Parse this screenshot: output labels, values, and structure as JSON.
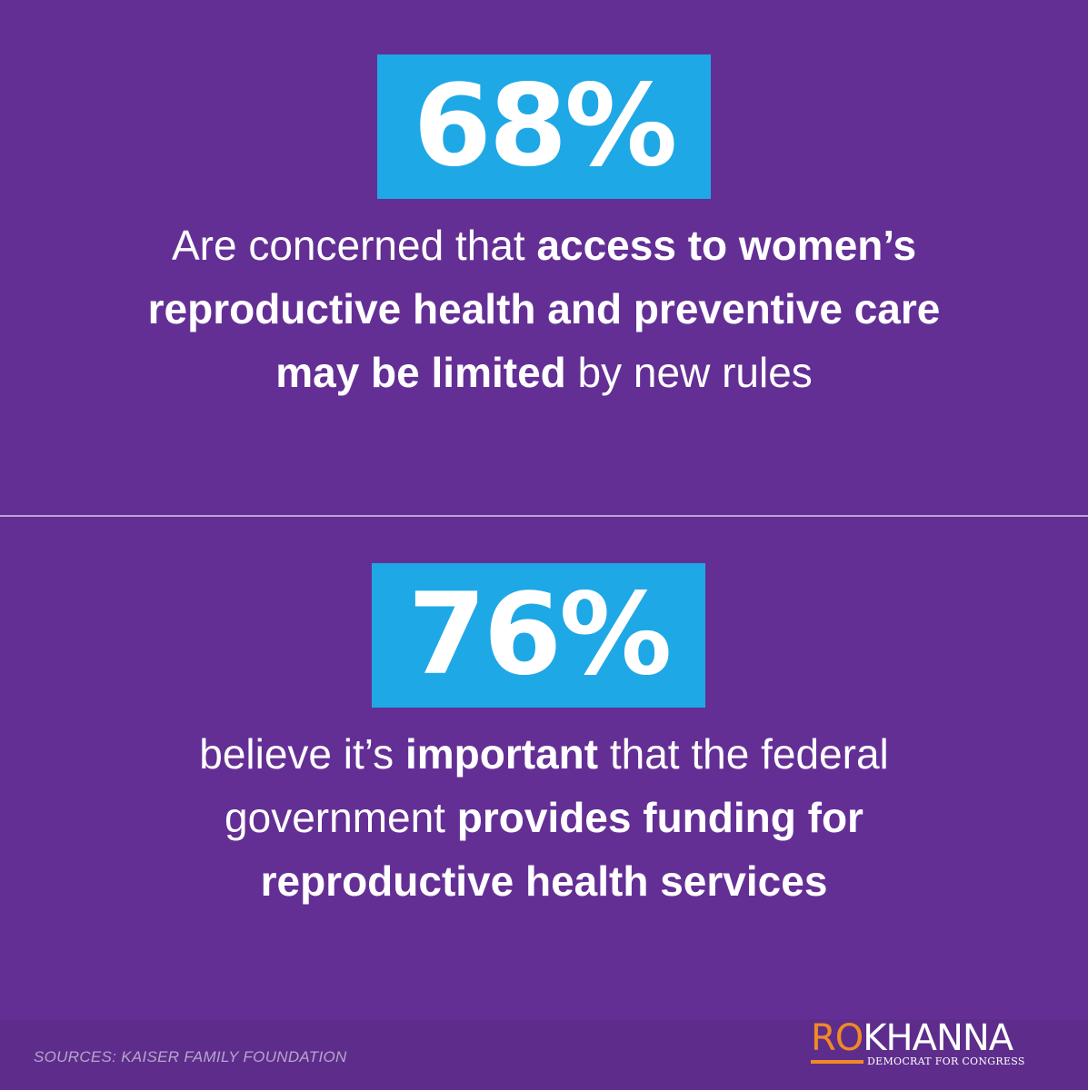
{
  "stats": [
    {
      "value": "68%",
      "text_parts": [
        {
          "text": "Are concerned that ",
          "bold": false
        },
        {
          "text": "access to women’s reproductive health and preventive care may be limited",
          "bold": true
        },
        {
          "text": " by new rules",
          "bold": false
        }
      ]
    },
    {
      "value": "76%",
      "text_parts": [
        {
          "text": "believe it’s ",
          "bold": false
        },
        {
          "text": "important",
          "bold": true
        },
        {
          "text": " that the federal government ",
          "bold": false
        },
        {
          "text": "provides funding for reproductive health services",
          "bold": true
        }
      ]
    }
  ],
  "footer": {
    "sources": "SOURCES: KAISER FAMILY FOUNDATION"
  },
  "logo": {
    "first": "RO",
    "last": "KHANNA",
    "tagline": "DEMOCRAT FOR CONGRESS"
  },
  "colors": {
    "background": "#642f95",
    "accent_box": "#1fa8e6",
    "logo_orange": "#f08a24"
  }
}
